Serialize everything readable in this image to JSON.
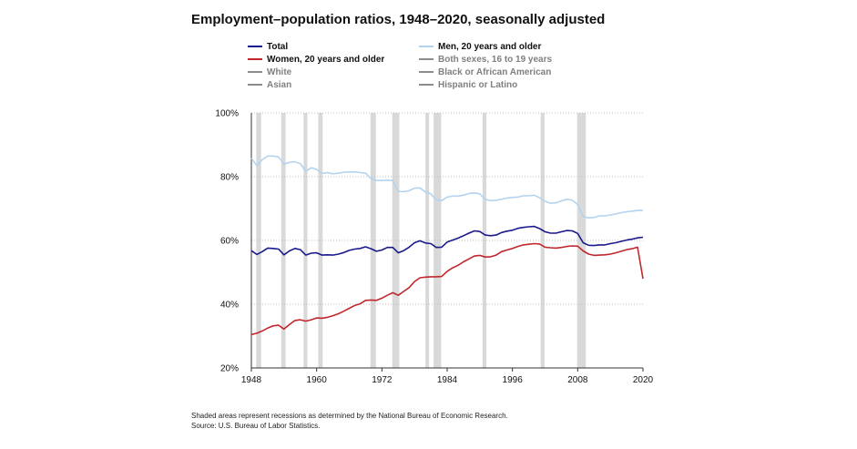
{
  "chart_data": {
    "type": "line",
    "title": "Employment–population ratios, 1948–2020, seasonally adjusted",
    "xlabel": "",
    "ylabel": "",
    "xlim": [
      1948,
      2020
    ],
    "ylim": [
      20,
      100
    ],
    "x_ticks": [
      "1948",
      "1960",
      "1972",
      "1984",
      "1996",
      "2008",
      "2020"
    ],
    "y_ticks": [
      "20%",
      "40%",
      "60%",
      "80%",
      "100%"
    ],
    "grid": "horizontal dotted",
    "legend_position": "top",
    "recessions": [
      [
        1948.9,
        1949.8
      ],
      [
        1953.5,
        1954.3
      ],
      [
        1957.6,
        1958.3
      ],
      [
        1960.3,
        1961.1
      ],
      [
        1969.9,
        1970.9
      ],
      [
        1973.9,
        1975.2
      ],
      [
        1980.0,
        1980.5
      ],
      [
        1981.5,
        1982.9
      ],
      [
        1990.5,
        1991.2
      ],
      [
        2001.2,
        2001.9
      ],
      [
        2007.9,
        2009.5
      ]
    ],
    "series": [
      {
        "name": "Total",
        "color": "#1a1a8c",
        "active": true,
        "x": [
          1948,
          1949,
          1950,
          1951,
          1952,
          1953,
          1954,
          1955,
          1956,
          1957,
          1958,
          1959,
          1960,
          1961,
          1962,
          1963,
          1964,
          1965,
          1966,
          1967,
          1968,
          1969,
          1970,
          1971,
          1972,
          1973,
          1974,
          1975,
          1976,
          1977,
          1978,
          1979,
          1980,
          1981,
          1982,
          1983,
          1984,
          1985,
          1986,
          1987,
          1988,
          1989,
          1990,
          1991,
          1992,
          1993,
          1994,
          1995,
          1996,
          1997,
          1998,
          1999,
          2000,
          2001,
          2002,
          2003,
          2004,
          2005,
          2006,
          2007,
          2008,
          2009,
          2010,
          2011,
          2012,
          2013,
          2014,
          2015,
          2016,
          2017,
          2018,
          2019,
          2020
        ],
        "y": [
          56.8,
          55.6,
          56.5,
          57.6,
          57.5,
          57.3,
          55.5,
          56.7,
          57.5,
          57.1,
          55.4,
          56.0,
          56.1,
          55.4,
          55.5,
          55.4,
          55.7,
          56.2,
          56.9,
          57.3,
          57.5,
          58.0,
          57.4,
          56.6,
          57.0,
          57.8,
          57.8,
          56.1,
          56.8,
          57.9,
          59.3,
          59.9,
          59.2,
          59.0,
          57.8,
          57.9,
          59.5,
          60.1,
          60.7,
          61.5,
          62.3,
          63.0,
          62.8,
          61.7,
          61.5,
          61.7,
          62.5,
          62.9,
          63.2,
          63.8,
          64.1,
          64.3,
          64.4,
          63.7,
          62.7,
          62.3,
          62.3,
          62.7,
          63.1,
          63.0,
          62.2,
          59.3,
          58.5,
          58.4,
          58.6,
          58.6,
          59.0,
          59.3,
          59.7,
          60.1,
          60.4,
          60.8,
          61.0
        ]
      },
      {
        "name": "Men, 20 years and older",
        "color": "#b4d3ee",
        "active": true,
        "x": [
          1948,
          1949,
          1950,
          1951,
          1952,
          1953,
          1954,
          1955,
          1956,
          1957,
          1958,
          1959,
          1960,
          1961,
          1962,
          1963,
          1964,
          1965,
          1966,
          1967,
          1968,
          1969,
          1970,
          1971,
          1972,
          1973,
          1974,
          1975,
          1976,
          1977,
          1978,
          1979,
          1980,
          1981,
          1982,
          1983,
          1984,
          1985,
          1986,
          1987,
          1988,
          1989,
          1990,
          1991,
          1992,
          1993,
          1994,
          1995,
          1996,
          1997,
          1998,
          1999,
          2000,
          2001,
          2002,
          2003,
          2004,
          2005,
          2006,
          2007,
          2008,
          2009,
          2010,
          2011,
          2012,
          2013,
          2014,
          2015,
          2016,
          2017,
          2018,
          2019,
          2020
        ],
        "y": [
          85.8,
          83.5,
          85.3,
          86.5,
          86.5,
          86.2,
          83.9,
          84.5,
          84.7,
          84.1,
          81.7,
          82.8,
          82.3,
          81.0,
          81.3,
          80.9,
          81.1,
          81.4,
          81.5,
          81.5,
          81.3,
          81.1,
          79.4,
          78.8,
          78.8,
          78.9,
          78.8,
          75.4,
          75.3,
          75.6,
          76.4,
          76.5,
          75.2,
          74.6,
          72.7,
          72.5,
          73.6,
          73.9,
          73.9,
          74.2,
          74.7,
          74.9,
          74.6,
          72.9,
          72.5,
          72.6,
          72.9,
          73.3,
          73.5,
          73.6,
          74.0,
          74.0,
          74.2,
          73.4,
          72.3,
          71.7,
          71.8,
          72.4,
          72.9,
          72.6,
          71.3,
          67.5,
          67.1,
          67.2,
          67.7,
          67.7,
          68.0,
          68.3,
          68.7,
          69.0,
          69.2,
          69.4,
          69.4
        ]
      },
      {
        "name": "Women, 20 years and older",
        "color": "#c1272d",
        "active": true,
        "x": [
          1948,
          1949,
          1950,
          1951,
          1952,
          1953,
          1954,
          1955,
          1956,
          1957,
          1958,
          1959,
          1960,
          1961,
          1962,
          1963,
          1964,
          1965,
          1966,
          1967,
          1968,
          1969,
          1970,
          1971,
          1972,
          1973,
          1974,
          1975,
          1976,
          1977,
          1978,
          1979,
          1980,
          1981,
          1982,
          1983,
          1984,
          1985,
          1986,
          1987,
          1988,
          1989,
          1990,
          1991,
          1992,
          1993,
          1994,
          1995,
          1996,
          1997,
          1998,
          1999,
          2000,
          2001,
          2002,
          2003,
          2004,
          2005,
          2006,
          2007,
          2008,
          2009,
          2010,
          2011,
          2012,
          2013,
          2014,
          2015,
          2016,
          2017,
          2018,
          2019,
          2020
        ],
        "y": [
          30.5,
          30.9,
          31.6,
          32.5,
          33.2,
          33.4,
          32.2,
          33.6,
          34.9,
          35.1,
          34.7,
          35.1,
          35.7,
          35.6,
          35.9,
          36.4,
          37.0,
          37.8,
          38.7,
          39.6,
          40.1,
          41.2,
          41.3,
          41.2,
          41.9,
          42.8,
          43.6,
          42.8,
          44.0,
          45.2,
          47.1,
          48.3,
          48.5,
          48.6,
          48.6,
          48.7,
          50.3,
          51.4,
          52.2,
          53.3,
          54.2,
          55.1,
          55.3,
          54.8,
          54.9,
          55.4,
          56.5,
          57.0,
          57.5,
          58.1,
          58.6,
          58.8,
          59.0,
          58.9,
          57.9,
          57.7,
          57.6,
          57.8,
          58.1,
          58.3,
          58.2,
          56.7,
          55.7,
          55.3,
          55.4,
          55.5,
          55.7,
          56.1,
          56.6,
          57.1,
          57.4,
          57.9,
          48.0
        ]
      },
      {
        "name": "Both sexes, 16 to 19 years",
        "color": "#8c8c8c",
        "active": false,
        "x": [],
        "y": []
      },
      {
        "name": "White",
        "color": "#8c8c8c",
        "active": false,
        "x": [],
        "y": []
      },
      {
        "name": "Black or African American",
        "color": "#8c8c8c",
        "active": false,
        "x": [],
        "y": []
      },
      {
        "name": "Asian",
        "color": "#8c8c8c",
        "active": false,
        "x": [],
        "y": []
      },
      {
        "name": "Hispanic or Latino",
        "color": "#8c8c8c",
        "active": false,
        "x": [],
        "y": []
      }
    ]
  },
  "legend": [
    {
      "label": "Total",
      "color": "#1a1a8c",
      "text_color": "#111111"
    },
    {
      "label": "Men, 20 years and older",
      "color": "#b4d3ee",
      "text_color": "#111111"
    },
    {
      "label": "Women, 20 years and older",
      "color": "#c1272d",
      "text_color": "#111111"
    },
    {
      "label": "Both sexes, 16 to 19 years",
      "color": "#8c8c8c",
      "text_color": "#808080"
    },
    {
      "label": "White",
      "color": "#8c8c8c",
      "text_color": "#808080"
    },
    {
      "label": "Black or African American",
      "color": "#8c8c8c",
      "text_color": "#808080"
    },
    {
      "label": "Asian",
      "color": "#8c8c8c",
      "text_color": "#808080"
    },
    {
      "label": "Hispanic or Latino",
      "color": "#8c8c8c",
      "text_color": "#808080"
    }
  ],
  "footnote": {
    "line1": "Shaded areas represent recessions as determined by the National Bureau of Economic Research.",
    "line2": "Source: U.S. Bureau of Labor Statistics."
  }
}
